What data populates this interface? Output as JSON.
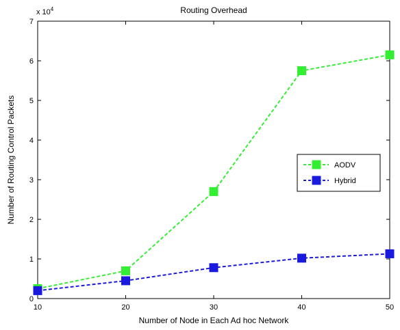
{
  "chart_data": {
    "type": "line",
    "title": "Routing Overhead",
    "xlabel": "Number of Node in Each Ad hoc Network",
    "ylabel": "Number of Routing Control Packets",
    "y_multiplier": "x 10",
    "y_exponent": "4",
    "x": [
      10,
      20,
      30,
      40,
      50
    ],
    "xlim": [
      10,
      50
    ],
    "ylim": [
      0,
      70000
    ],
    "x_ticks": [
      "10",
      "20",
      "30",
      "40",
      "50"
    ],
    "y_ticks": [
      "0",
      "1",
      "2",
      "3",
      "4",
      "5",
      "6",
      "7"
    ],
    "grid": false,
    "legend_position": "right",
    "series": [
      {
        "name": "AODV",
        "color": "#33ee33",
        "marker": "square",
        "line_style": "dashed",
        "values": [
          2500,
          7000,
          27000,
          57500,
          61500
        ]
      },
      {
        "name": "Hybrid",
        "color": "#1a1adf",
        "marker": "square",
        "line_style": "dashed",
        "values": [
          2000,
          4500,
          7800,
          10200,
          11300
        ]
      }
    ]
  }
}
